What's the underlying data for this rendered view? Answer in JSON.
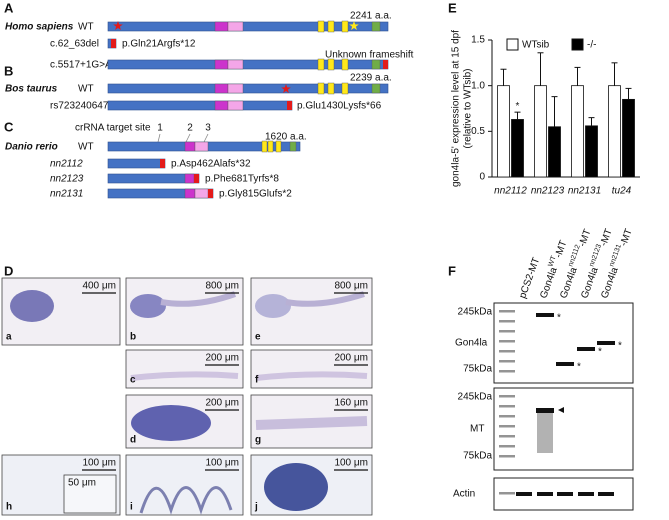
{
  "panel_a": {
    "label": "A",
    "species": "Homo sapiens",
    "wt": {
      "name": "WT",
      "length": "2241 a.a."
    },
    "variants": [
      {
        "name": "c.62_63del",
        "effect": "p.Gln21Argfs*12"
      },
      {
        "name": "c.5517+1G>A",
        "effect": "Unknown frameshift"
      }
    ]
  },
  "panel_b": {
    "label": "B",
    "species": "Bos taurus",
    "wt": {
      "name": "WT",
      "length": "2239 a.a."
    },
    "variants": [
      {
        "name": "rs723240647",
        "effect": "p.Glu1430Lysfs*66"
      }
    ]
  },
  "panel_c": {
    "label": "C",
    "target_title": "crRNA target site",
    "targets": [
      "1",
      "2",
      "3"
    ],
    "species": "Danio rerio",
    "wt": {
      "name": "WT",
      "length": "1620 a.a."
    },
    "variants": [
      {
        "name": "nn2112",
        "effect": "p.Asp462Alafs*32"
      },
      {
        "name": "nn2123",
        "effect": "p.Phe681Tyrfs*8"
      },
      {
        "name": "nn2131",
        "effect": "p.Gly815Glufs*2"
      }
    ]
  },
  "panel_d": {
    "label": "D",
    "images": [
      {
        "label": "a",
        "scale": "400 μm"
      },
      {
        "label": "b",
        "scale": "800 μm"
      },
      {
        "label": "e",
        "scale": "800 μm"
      },
      {
        "label": "c",
        "scale": "200 μm"
      },
      {
        "label": "f",
        "scale": "200 μm"
      },
      {
        "label": "d",
        "scale": "200 μm"
      },
      {
        "label": "g",
        "scale": "160 μm"
      },
      {
        "label": "h",
        "scale": "100 μm",
        "inset_scale": "50 μm"
      },
      {
        "label": "i",
        "scale": "100 μm"
      },
      {
        "label": "j",
        "scale": "100 μm"
      }
    ]
  },
  "panel_e_label": "E",
  "chart_data": {
    "type": "bar",
    "ylabel": [
      "gon4la-5' expression level at 15 dpf",
      "(relative to WTsib)"
    ],
    "categories": [
      "nn2112",
      "nn2123",
      "nn2131",
      "tu24"
    ],
    "series": [
      {
        "name": "WTsib",
        "color": "#ffffff",
        "values": [
          1.0,
          1.0,
          1.0,
          1.0
        ],
        "errors": [
          0.18,
          0.36,
          0.2,
          0.25
        ]
      },
      {
        "name": "-/-",
        "color": "#000000",
        "values": [
          0.63,
          0.55,
          0.56,
          0.85
        ],
        "errors": [
          0.08,
          0.33,
          0.09,
          0.12
        ],
        "significance": [
          "*",
          null,
          null,
          null
        ]
      }
    ],
    "ylim": [
      0,
      1.5
    ],
    "yticks": [
      0,
      0.5,
      {
        "value": 1.0,
        "label": "1.0"
      },
      1.5
    ]
  },
  "panel_f": {
    "label": "F",
    "lanes": [
      {
        "base": "pCS2-MT"
      },
      {
        "base": "Gon4la",
        "sup": "WT",
        "suffix": "-MT"
      },
      {
        "base": "Gon4la",
        "sup": "nn2112",
        "suffix": "-MT"
      },
      {
        "base": "Gon4la",
        "sup": "nn2123",
        "suffix": "-MT"
      },
      {
        "base": "Gon4la",
        "sup": "nn2131",
        "suffix": "-MT"
      }
    ],
    "band_marks": [
      "*",
      "*",
      "*",
      "*"
    ],
    "blots": [
      {
        "name": "Gon4la",
        "markers": [
          "245kDa",
          "75kDa"
        ]
      },
      {
        "name": "MT",
        "markers": [
          "245kDa",
          "75kDa"
        ]
      },
      {
        "name": "Actin"
      }
    ]
  }
}
